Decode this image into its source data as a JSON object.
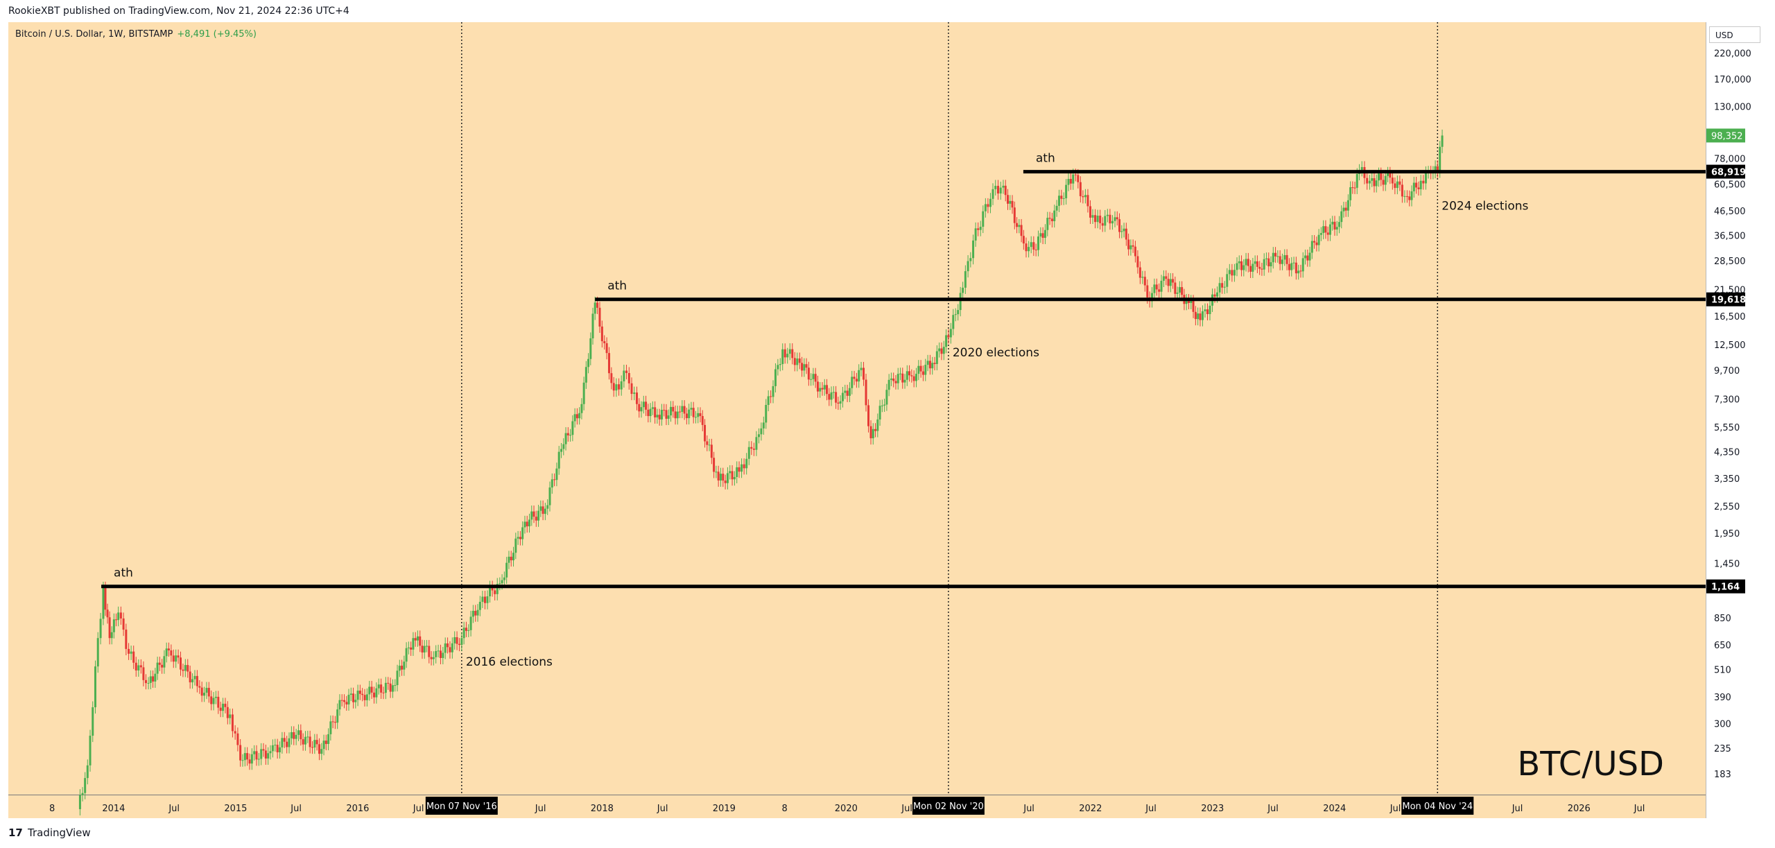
{
  "header": {
    "published": "RookieXBT published on TradingView.com, Nov 21, 2024 22:36 UTC+4"
  },
  "legend": {
    "symbol": "Bitcoin / U.S. Dollar, 1W, BITSTAMP",
    "change": "+8,491 (+9.45%)"
  },
  "currency": "USD",
  "watermark": "BTC/USD",
  "footer": {
    "logo_glyph": "17",
    "brand": "TradingView"
  },
  "colors": {
    "background": "#fddfb0",
    "up": "#4caf50",
    "down": "#e53935",
    "line": "#000000",
    "last_price": "#4caf50"
  },
  "chart_data": {
    "type": "candlestick",
    "scale": "log",
    "ylim": [
      150,
      300000
    ],
    "y_ticks": [
      183,
      235,
      300,
      390,
      510,
      650,
      850,
      1450,
      1950,
      2550,
      3350,
      4350,
      5550,
      7300,
      9700,
      12500,
      16500,
      21500,
      28500,
      36500,
      46500,
      60500,
      78000,
      130000,
      170000,
      220000
    ],
    "y_tick_labels": [
      "183",
      "235",
      "300",
      "390",
      "510",
      "650",
      "850",
      "1,450",
      "1,950",
      "2,550",
      "3,350",
      "4,350",
      "5,550",
      "7,300",
      "9,700",
      "12,500",
      "16,500",
      "21,500",
      "28,500",
      "36,500",
      "46,500",
      "60,500",
      "78,000",
      "130,000",
      "170,000",
      "220,000"
    ],
    "x_ticks": [
      {
        "date": "2013-07-01",
        "label": "8"
      },
      {
        "date": "2014-01-01",
        "label": "2014"
      },
      {
        "date": "2014-07-01",
        "label": "Jul"
      },
      {
        "date": "2015-01-01",
        "label": "2015"
      },
      {
        "date": "2015-07-01",
        "label": "Jul"
      },
      {
        "date": "2016-01-01",
        "label": "2016"
      },
      {
        "date": "2016-07-01",
        "label": "Jul"
      },
      {
        "date": "2017-07-01",
        "label": "Jul"
      },
      {
        "date": "2018-01-01",
        "label": "2018"
      },
      {
        "date": "2018-07-01",
        "label": "Jul"
      },
      {
        "date": "2019-01-01",
        "label": "2019"
      },
      {
        "date": "2019-07-01",
        "label": "8"
      },
      {
        "date": "2020-01-01",
        "label": "2020"
      },
      {
        "date": "2020-07-01",
        "label": "Jul"
      },
      {
        "date": "2021-07-01",
        "label": "Jul"
      },
      {
        "date": "2022-01-01",
        "label": "2022"
      },
      {
        "date": "2022-07-01",
        "label": "Jul"
      },
      {
        "date": "2023-01-01",
        "label": "2023"
      },
      {
        "date": "2023-07-01",
        "label": "Jul"
      },
      {
        "date": "2024-01-01",
        "label": "2024"
      },
      {
        "date": "2024-07-01",
        "label": "Jul"
      },
      {
        "date": "2025-07-01",
        "label": "Jul"
      },
      {
        "date": "2026-01-01",
        "label": "2026"
      },
      {
        "date": "2026-07-01",
        "label": "Jul"
      }
    ],
    "event_lines": [
      {
        "date": "2016-11-07",
        "label": "Mon 07 Nov '16",
        "annotation": "2016 elections",
        "price": 620
      },
      {
        "date": "2020-11-02",
        "label": "Mon 02 Nov '20",
        "annotation": "2020 elections",
        "price": 13000
      },
      {
        "date": "2024-11-04",
        "label": "Mon 04 Nov '24",
        "annotation": "2024 elections",
        "price": 55000
      }
    ],
    "horizontal_levels": [
      {
        "value": 1164,
        "label": "1,164",
        "from_date": "2013-11-25",
        "annotation": "ath"
      },
      {
        "value": 19618,
        "label": "19,618",
        "from_date": "2017-12-11",
        "annotation": "ath"
      },
      {
        "value": 68919,
        "label": "68,919",
        "from_date": "2021-06-14",
        "annotation": "ath"
      }
    ],
    "last_price": {
      "value": 98352,
      "label": "98,352"
    },
    "series": [
      {
        "date": "2013-09-15",
        "close": 130
      },
      {
        "date": "2013-10-15",
        "close": 200
      },
      {
        "date": "2013-11-15",
        "close": 700
      },
      {
        "date": "2013-12-01",
        "close": 1150
      },
      {
        "date": "2013-12-20",
        "close": 700
      },
      {
        "date": "2014-01-15",
        "close": 900
      },
      {
        "date": "2014-02-15",
        "close": 600
      },
      {
        "date": "2014-04-15",
        "close": 450
      },
      {
        "date": "2014-06-15",
        "close": 620
      },
      {
        "date": "2014-09-15",
        "close": 430
      },
      {
        "date": "2014-12-15",
        "close": 330
      },
      {
        "date": "2015-01-15",
        "close": 210
      },
      {
        "date": "2015-04-15",
        "close": 230
      },
      {
        "date": "2015-07-01",
        "close": 270
      },
      {
        "date": "2015-09-15",
        "close": 235
      },
      {
        "date": "2015-11-15",
        "close": 380
      },
      {
        "date": "2016-01-15",
        "close": 400
      },
      {
        "date": "2016-04-15",
        "close": 440
      },
      {
        "date": "2016-06-15",
        "close": 700
      },
      {
        "date": "2016-08-15",
        "close": 580
      },
      {
        "date": "2016-11-07",
        "close": 700
      },
      {
        "date": "2017-01-01",
        "close": 1000
      },
      {
        "date": "2017-03-01",
        "close": 1200
      },
      {
        "date": "2017-05-15",
        "close": 2200
      },
      {
        "date": "2017-07-15",
        "close": 2500
      },
      {
        "date": "2017-09-01",
        "close": 4500
      },
      {
        "date": "2017-11-01",
        "close": 7000
      },
      {
        "date": "2017-12-11",
        "close": 19000
      },
      {
        "date": "2018-02-05",
        "close": 8000
      },
      {
        "date": "2018-03-15",
        "close": 9500
      },
      {
        "date": "2018-04-15",
        "close": 7000
      },
      {
        "date": "2018-06-15",
        "close": 6300
      },
      {
        "date": "2018-08-15",
        "close": 6500
      },
      {
        "date": "2018-10-15",
        "close": 6400
      },
      {
        "date": "2018-12-15",
        "close": 3300
      },
      {
        "date": "2019-02-15",
        "close": 3600
      },
      {
        "date": "2019-04-15",
        "close": 5200
      },
      {
        "date": "2019-06-25",
        "close": 12000
      },
      {
        "date": "2019-08-15",
        "close": 10500
      },
      {
        "date": "2019-10-15",
        "close": 8200
      },
      {
        "date": "2019-12-15",
        "close": 7200
      },
      {
        "date": "2020-02-15",
        "close": 10000
      },
      {
        "date": "2020-03-15",
        "close": 5000
      },
      {
        "date": "2020-05-15",
        "close": 9000
      },
      {
        "date": "2020-07-15",
        "close": 9200
      },
      {
        "date": "2020-09-15",
        "close": 10500
      },
      {
        "date": "2020-11-02",
        "close": 13500
      },
      {
        "date": "2020-12-15",
        "close": 22000
      },
      {
        "date": "2021-01-15",
        "close": 35000
      },
      {
        "date": "2021-03-15",
        "close": 58000
      },
      {
        "date": "2021-04-15",
        "close": 60000
      },
      {
        "date": "2021-06-15",
        "close": 34000
      },
      {
        "date": "2021-07-15",
        "close": 32000
      },
      {
        "date": "2021-09-15",
        "close": 47000
      },
      {
        "date": "2021-11-10",
        "close": 67000
      },
      {
        "date": "2022-01-15",
        "close": 42000
      },
      {
        "date": "2022-03-15",
        "close": 44000
      },
      {
        "date": "2022-05-15",
        "close": 30000
      },
      {
        "date": "2022-06-20",
        "close": 20000
      },
      {
        "date": "2022-08-15",
        "close": 24000
      },
      {
        "date": "2022-10-15",
        "close": 19500
      },
      {
        "date": "2022-11-25",
        "close": 16000
      },
      {
        "date": "2023-01-15",
        "close": 21000
      },
      {
        "date": "2023-03-15",
        "close": 28000
      },
      {
        "date": "2023-05-15",
        "close": 27000
      },
      {
        "date": "2023-07-15",
        "close": 30000
      },
      {
        "date": "2023-09-15",
        "close": 26000
      },
      {
        "date": "2023-11-15",
        "close": 37000
      },
      {
        "date": "2024-01-15",
        "close": 42000
      },
      {
        "date": "2024-03-15",
        "close": 70000
      },
      {
        "date": "2024-04-15",
        "close": 63000
      },
      {
        "date": "2024-06-15",
        "close": 65000
      },
      {
        "date": "2024-08-05",
        "close": 54000
      },
      {
        "date": "2024-09-15",
        "close": 63000
      },
      {
        "date": "2024-10-15",
        "close": 68000
      },
      {
        "date": "2024-11-04",
        "close": 69000
      },
      {
        "date": "2024-11-11",
        "close": 88000
      },
      {
        "date": "2024-11-18",
        "close": 98352
      }
    ]
  }
}
